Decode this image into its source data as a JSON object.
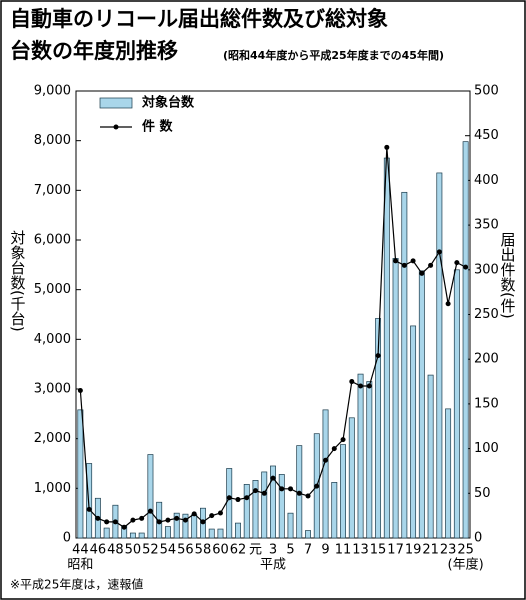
{
  "chart_data": {
    "type": "bar_line",
    "title": [
      "自動車のリコール届出総件数及び総対象",
      "台数の年度別推移"
    ],
    "subtitle": "(昭和44年度から平成25年度までの45年間)",
    "y_label": "対象台数(千台)",
    "y2_label": "届出件数(件)",
    "categories": [
      "44",
      null,
      "46",
      null,
      "48",
      null,
      "50",
      null,
      "52",
      null,
      "54",
      null,
      "56",
      null,
      "58",
      null,
      "60",
      null,
      "62",
      null,
      "元",
      null,
      "3",
      null,
      "5",
      null,
      "7",
      null,
      "9",
      null,
      "11",
      null,
      "13",
      null,
      "15",
      null,
      "17",
      null,
      "19",
      null,
      "21",
      null,
      "23",
      null,
      "25"
    ],
    "era_labels": [
      {
        "index": 0,
        "label": "昭和"
      },
      {
        "index": 22,
        "label": "平成"
      },
      {
        "index": 44,
        "label": "(年度)"
      }
    ],
    "series": [
      {
        "name": "対象台数",
        "color": "#a9d6ea",
        "values": [
          2580,
          1500,
          800,
          200,
          660,
          250,
          100,
          100,
          1680,
          720,
          230,
          500,
          480,
          470,
          600,
          180,
          180,
          1400,
          300,
          1080,
          1160,
          1330,
          1450,
          1280,
          500,
          1860,
          150,
          2100,
          2580,
          1120,
          1880,
          2420,
          3300,
          3150,
          4420,
          7650,
          5630,
          6960,
          4270,
          5380,
          3280,
          7350,
          2600,
          5400,
          7980
        ]
      },
      {
        "name": "件 数",
        "color": "#000000",
        "axis": "y2",
        "values": [
          165,
          32,
          22,
          18,
          18,
          12,
          20,
          22,
          30,
          18,
          20,
          22,
          20,
          27,
          18,
          25,
          28,
          45,
          43,
          45,
          53,
          50,
          67,
          55,
          55,
          50,
          47,
          58,
          87,
          100,
          110,
          175,
          170,
          170,
          204,
          437,
          310,
          305,
          310,
          296,
          305,
          320,
          262,
          308,
          303
        ]
      }
    ],
    "ylim": [
      0,
      9000
    ],
    "yticks": [
      0,
      {
        "value": 1000,
        "label": "1,000"
      },
      {
        "value": 2000,
        "label": "2,000"
      },
      {
        "value": 3000,
        "label": "3,000"
      },
      {
        "value": 4000,
        "label": "4,000"
      },
      {
        "value": 5000,
        "label": "5,000"
      },
      {
        "value": 6000,
        "label": "6,000"
      },
      {
        "value": 7000,
        "label": "7,000"
      },
      {
        "value": 8000,
        "label": "8,000"
      },
      {
        "value": 9000,
        "label": "9,000"
      }
    ],
    "y2lim": [
      0,
      500
    ],
    "y2ticks": [
      0,
      50,
      100,
      150,
      200,
      250,
      300,
      350,
      400,
      450,
      500
    ],
    "footnote": "※平成25年度は，速報値"
  }
}
